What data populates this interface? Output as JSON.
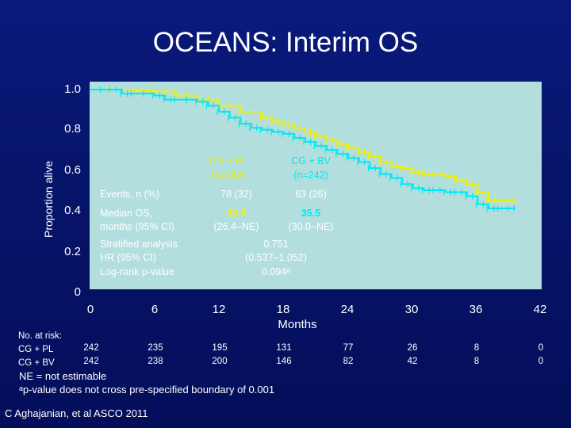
{
  "title": "OCEANS: Interim OS",
  "chart_data": {
    "type": "line",
    "title": "OCEANS: Interim OS",
    "xlabel": "Months",
    "ylabel": "Proportion alive",
    "xlim": [
      0,
      42
    ],
    "ylim": [
      0,
      1.0
    ],
    "x_ticks": [
      "0",
      "6",
      "12",
      "18",
      "24",
      "30",
      "36",
      "42"
    ],
    "y_ticks": [
      "1.0",
      "0.8",
      "0.6",
      "0.4",
      "0.2",
      "0"
    ],
    "series": [
      {
        "name": "CG + BV",
        "color": "#f0f000",
        "x": [
          0,
          4,
          6,
          8,
          10,
          12,
          14,
          16,
          17,
          18,
          19,
          20,
          21,
          22,
          23,
          24,
          25,
          26,
          27,
          28,
          29,
          30,
          31,
          32,
          33,
          34,
          35,
          36,
          37,
          38,
          39.5
        ],
        "y": [
          1.0,
          0.995,
          0.99,
          0.97,
          0.95,
          0.92,
          0.89,
          0.86,
          0.84,
          0.83,
          0.81,
          0.79,
          0.77,
          0.75,
          0.73,
          0.71,
          0.69,
          0.67,
          0.64,
          0.62,
          0.61,
          0.59,
          0.58,
          0.58,
          0.57,
          0.55,
          0.53,
          0.49,
          0.45,
          0.45,
          0.45
        ]
      },
      {
        "name": "CG + PL",
        "color": "#00e8f0",
        "x": [
          0,
          2,
          3,
          4,
          6,
          7,
          8,
          10,
          11,
          12,
          13,
          14,
          15,
          16,
          17,
          18,
          19,
          20,
          21,
          22,
          23,
          24,
          25,
          26,
          27,
          28,
          29,
          30,
          31,
          32,
          33,
          34,
          35,
          36,
          37,
          38,
          39.5
        ],
        "y": [
          1.0,
          1.0,
          0.98,
          0.98,
          0.97,
          0.95,
          0.95,
          0.94,
          0.92,
          0.89,
          0.86,
          0.83,
          0.81,
          0.8,
          0.79,
          0.78,
          0.76,
          0.74,
          0.72,
          0.7,
          0.68,
          0.66,
          0.64,
          0.61,
          0.58,
          0.56,
          0.53,
          0.51,
          0.5,
          0.5,
          0.49,
          0.49,
          0.47,
          0.43,
          0.41,
          0.41,
          0.41
        ]
      }
    ],
    "table": {
      "col1_header": "CG + PL",
      "col1_n": "(n=242)",
      "col2_header": "CG + BV",
      "col2_n": "(n=242)",
      "events_label": "Events, n (%)",
      "events_pl": "78 (32)",
      "events_bv": "63 (26)",
      "median_label_1": "Median OS,",
      "median_label_2": "months (95% CI)",
      "median_pl": "29.9",
      "median_pl_ci": "(26.4–NE)",
      "median_bv": "35.5",
      "median_bv_ci": "(30.0–NE)",
      "strat_label_1": "Stratified analysis",
      "strat_label_2": "HR (95% CI)",
      "strat_label_3": "Log-rank p-value",
      "hr": "0.751",
      "hr_ci": "(0.537–1.052)",
      "pvalue": "0.094ᵃ"
    },
    "at_risk": {
      "header": "No. at risk:",
      "rows": [
        {
          "label": "CG + PL",
          "values": [
            "242",
            "235",
            "195",
            "131",
            "77",
            "26",
            "8",
            "0"
          ]
        },
        {
          "label": "CG + BV",
          "values": [
            "242",
            "238",
            "200",
            "146",
            "82",
            "42",
            "8",
            "0"
          ]
        }
      ]
    }
  },
  "footnote_line1": "NE = not estimable",
  "footnote_line2": "ᵃp-value does not cross pre-specified boundary of 0.001",
  "citation": "C Aghajanian, et al ASCO 2011"
}
